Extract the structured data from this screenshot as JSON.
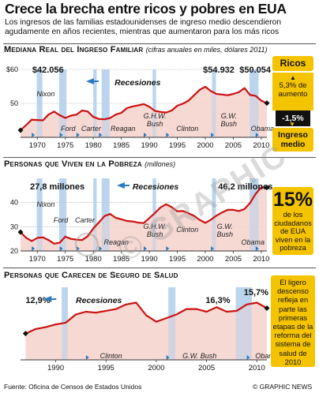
{
  "title": "Crece la brecha entre ricos y pobres en EUA",
  "subtitle": "Los ingresos de las familias estadounidenses de ingreso medio descendieron agudamente en años recientes, mientras que aumentaron para los más ricos",
  "colors": {
    "line": "#cc1111",
    "area": "#f6d2cc",
    "recession": "#bcd6ee",
    "accent": "#f5c400",
    "dark": "#111111"
  },
  "source": "Fuente: Oficina de Censos de Estados Unidos",
  "credit": "© GRAPHIC NEWS",
  "watermark": "© GRAPHIC NEWS",
  "side_boxes": {
    "income": {
      "top": "Ricos",
      "top_value": "5,3% de aumento",
      "bottom_value": "-1,5%",
      "bottom": "Ingreso medio",
      "arrow_up": "up-arrow-icon",
      "arrow_down": "down-arrow-icon"
    },
    "poverty": {
      "big": "15%",
      "text": "de los ciudadanos de EUA viven en la pobreza"
    },
    "insurance": {
      "text": "El ligero descenso refleja en parte las primeras etapas de la reforma del sistema de salud de 2010"
    }
  },
  "chart_data": [
    {
      "type": "area",
      "title": "Mediana Real del Ingreso Familiar",
      "note": "(cifras anuales en miles, dólares 2011)",
      "xlim": [
        1967,
        2011
      ],
      "ylim": [
        40,
        60
      ],
      "yticks": [
        40,
        50,
        60
      ],
      "ytick_labels": [
        "",
        "50",
        "$60"
      ],
      "xticks": [
        1970,
        1975,
        1980,
        1985,
        1990,
        1995,
        2000,
        2005,
        2010
      ],
      "recessions": [
        [
          1969.9,
          1970.9
        ],
        [
          1973.9,
          1975.2
        ],
        [
          1980.0,
          1980.6
        ],
        [
          1981.5,
          1982.9
        ],
        [
          1990.6,
          1991.2
        ],
        [
          2001.2,
          2001.9
        ],
        [
          2007.9,
          2009.5
        ]
      ],
      "recession_label": "Recesiones",
      "presidents": [
        {
          "name": "Nixon",
          "start": 1969
        },
        {
          "name": "Ford",
          "start": 1974
        },
        {
          "name": "Carter",
          "start": 1977
        },
        {
          "name": "Reagan",
          "start": 1981
        },
        {
          "name": "G.H.W. Bush",
          "start": 1989
        },
        {
          "name": "Clinton",
          "start": 1993
        },
        {
          "name": "G.W. Bush",
          "start": 2001
        },
        {
          "name": "Obama",
          "start": 2009
        }
      ],
      "annotations": [
        "$42.056",
        "$54.932",
        "$50.054"
      ],
      "x": [
        1967,
        1968,
        1969,
        1970,
        1971,
        1972,
        1973,
        1974,
        1975,
        1976,
        1977,
        1978,
        1979,
        1980,
        1981,
        1982,
        1983,
        1984,
        1985,
        1986,
        1987,
        1988,
        1989,
        1990,
        1991,
        1992,
        1993,
        1994,
        1995,
        1996,
        1997,
        1998,
        1999,
        2000,
        2001,
        2002,
        2003,
        2004,
        2005,
        2006,
        2007,
        2008,
        2009,
        2010,
        2011
      ],
      "values": [
        42.1,
        43.6,
        45.2,
        45.1,
        45.0,
        46.7,
        47.6,
        46.5,
        45.7,
        46.4,
        46.7,
        47.9,
        47.6,
        46.0,
        45.4,
        45.3,
        45.7,
        46.7,
        47.2,
        48.6,
        49.1,
        49.4,
        49.8,
        49.0,
        47.8,
        47.5,
        47.3,
        47.9,
        49.3,
        49.9,
        50.8,
        52.4,
        54.0,
        54.9,
        53.6,
        52.8,
        52.6,
        52.4,
        52.8,
        53.3,
        54.5,
        52.5,
        52.2,
        50.8,
        50.1
      ]
    },
    {
      "type": "area",
      "title": "Personas que Viven en la Pobreza",
      "note": "(millones)",
      "xlim": [
        1967,
        2011
      ],
      "ylim": [
        20,
        50
      ],
      "yticks": [
        20,
        30,
        40
      ],
      "ytick_labels": [
        "20",
        "30",
        "40"
      ],
      "xticks": [
        1970,
        1975,
        1980,
        1985,
        1990,
        1995,
        2000,
        2005,
        2010
      ],
      "recessions": [
        [
          1969.9,
          1970.9
        ],
        [
          1973.9,
          1975.2
        ],
        [
          1980.0,
          1980.6
        ],
        [
          1981.5,
          1982.9
        ],
        [
          1990.6,
          1991.2
        ],
        [
          2001.2,
          2001.9
        ],
        [
          2007.9,
          2009.5
        ]
      ],
      "recession_label": "Recesiones",
      "presidents": [
        {
          "name": "Nixon",
          "start": 1969
        },
        {
          "name": "Ford",
          "start": 1974
        },
        {
          "name": "Carter",
          "start": 1977
        },
        {
          "name": "Reagan",
          "start": 1981
        },
        {
          "name": "G.H.W. Bush",
          "start": 1989
        },
        {
          "name": "Clinton",
          "start": 1993
        },
        {
          "name": "G.W. Bush",
          "start": 2001
        },
        {
          "name": "Obama",
          "start": 2009
        }
      ],
      "annotations": [
        "27,8 millones",
        "46,2 millones"
      ],
      "x": [
        1967,
        1968,
        1969,
        1970,
        1971,
        1972,
        1973,
        1974,
        1975,
        1976,
        1977,
        1978,
        1979,
        1980,
        1981,
        1982,
        1983,
        1984,
        1985,
        1986,
        1987,
        1988,
        1989,
        1990,
        1991,
        1992,
        1993,
        1994,
        1995,
        1996,
        1997,
        1998,
        1999,
        2000,
        2001,
        2002,
        2003,
        2004,
        2005,
        2006,
        2007,
        2008,
        2009,
        2010,
        2011
      ],
      "values": [
        27.8,
        25.4,
        24.1,
        25.4,
        25.6,
        24.5,
        23.0,
        23.4,
        25.9,
        25.0,
        24.7,
        24.5,
        26.1,
        29.3,
        31.8,
        34.4,
        35.3,
        33.7,
        33.1,
        32.4,
        32.2,
        31.7,
        31.5,
        33.6,
        35.7,
        38.0,
        39.3,
        38.1,
        36.4,
        36.5,
        35.6,
        34.5,
        32.8,
        31.6,
        32.9,
        34.6,
        35.9,
        37.0,
        37.0,
        36.5,
        37.3,
        39.8,
        43.6,
        46.3,
        46.2
      ]
    },
    {
      "type": "area",
      "title": "Personas que Carecen de Seguro de Salud",
      "note": "",
      "xlim": [
        1986.5,
        2011
      ],
      "ylim": [
        10,
        18
      ],
      "yticks": [],
      "ytick_labels": [],
      "xticks": [
        1990,
        1995,
        2000,
        2005,
        2010
      ],
      "recessions": [
        [
          1990.6,
          1991.2
        ],
        [
          2001.2,
          2001.9
        ],
        [
          2007.9,
          2009.5
        ]
      ],
      "recession_label": "Recesiones",
      "presidents": [
        {
          "name": "Clinton",
          "start": 1993
        },
        {
          "name": "G.W. Bush",
          "start": 2001
        },
        {
          "name": "Obama",
          "start": 2009
        }
      ],
      "annotations": [
        "12,9%",
        "16,3%",
        "15,7%"
      ],
      "x": [
        1987,
        1988,
        1989,
        1990,
        1991,
        1992,
        1993,
        1994,
        1995,
        1996,
        1997,
        1998,
        1999,
        2000,
        2001,
        2002,
        2003,
        2004,
        2005,
        2006,
        2007,
        2008,
        2009,
        2010,
        2011
      ],
      "values": [
        12.9,
        13.4,
        13.6,
        13.9,
        14.1,
        15.0,
        15.3,
        15.2,
        15.4,
        15.6,
        16.1,
        16.3,
        14.9,
        14.2,
        14.6,
        15.0,
        15.6,
        15.6,
        15.3,
        15.8,
        15.3,
        15.4,
        16.1,
        16.3,
        15.7
      ]
    }
  ]
}
